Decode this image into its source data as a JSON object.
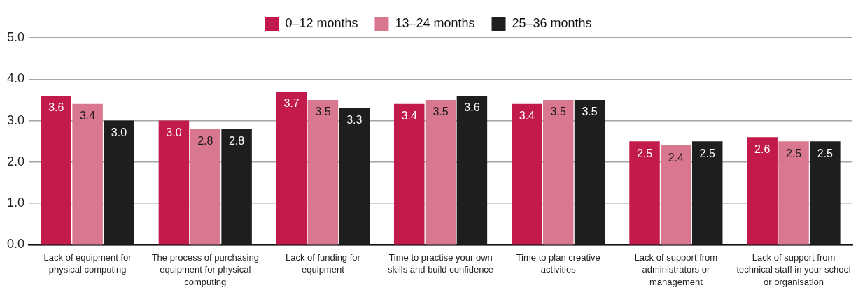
{
  "chart_data": {
    "type": "bar",
    "categories": [
      "Lack of equipment for physical computing",
      "The process of purchasing equipment for physical computing",
      "Lack of funding for equipment",
      "Time to practise your own skills and build confidence",
      "Time to plan creative activities",
      "Lack of support from administrators or management",
      "Lack of support from technical staff in your school or organisation"
    ],
    "series": [
      {
        "name": "0–12 months",
        "color": "#c21b4b",
        "values": [
          3.6,
          3.0,
          3.7,
          3.4,
          3.4,
          2.5,
          2.6
        ],
        "value_labels": [
          "3.6",
          "3.0",
          "3.7",
          "3.4",
          "3.4",
          "2.5",
          "2.6"
        ]
      },
      {
        "name": "13–24 months",
        "color": "#d8778f",
        "values": [
          3.4,
          2.8,
          3.5,
          3.5,
          3.5,
          2.4,
          2.5
        ],
        "value_labels": [
          "3.4",
          "2.8",
          "3.5",
          "3.5",
          "3.5",
          "2.4",
          "2.5"
        ]
      },
      {
        "name": "25–36 months",
        "color": "#1e1e1e",
        "values": [
          3.0,
          2.8,
          3.3,
          3.6,
          3.5,
          2.5,
          2.5
        ],
        "value_labels": [
          "3.0",
          "2.8",
          "3.3",
          "3.6",
          "3.5",
          "2.5",
          "2.5"
        ]
      }
    ],
    "ylim": [
      0,
      5
    ],
    "yticks": [
      {
        "value": 0,
        "label": "0.0"
      },
      {
        "value": 1,
        "label": "1.0"
      },
      {
        "value": 2,
        "label": "2.0"
      },
      {
        "value": 3,
        "label": "3.0"
      },
      {
        "value": 4,
        "label": "4.0"
      },
      {
        "value": 5,
        "label": "5.0"
      }
    ],
    "grid": "y",
    "legend": "top"
  }
}
